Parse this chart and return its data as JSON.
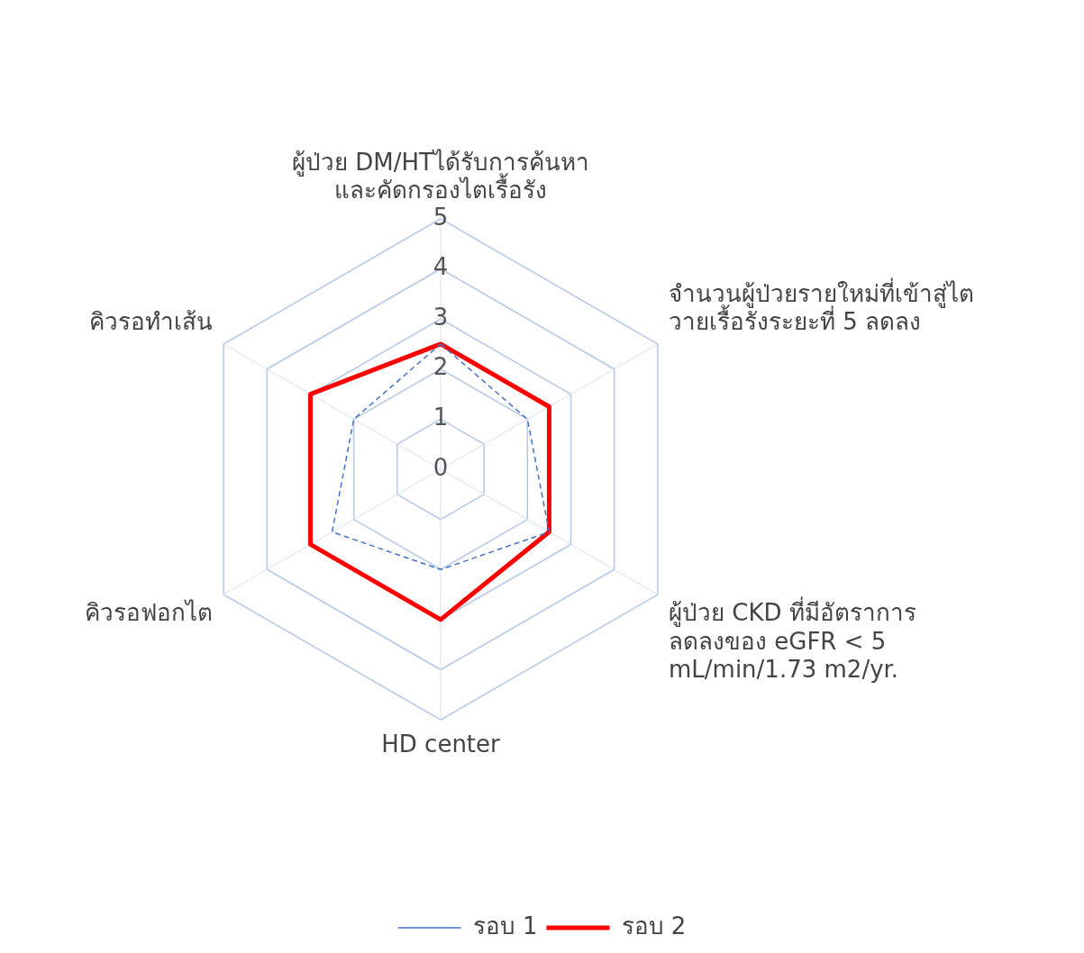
{
  "chart_data": {
    "type": "radar",
    "categories": [
      "ผู้ป่วย DM/HTได้รับการค้นหา\nและคัดกรองไตเรื้อรัง",
      "จำนวนผู้ป่วยรายใหม่ที่เข้าสู่ไต\nวายเรื้อรังระยะที่ 5 ลดลง",
      "ผู้ป่วย CKD ที่มีอัตราการ\nลดลงของ eGFR < 5\nmL/min/1.73 m2/yr.",
      "HD center",
      "คิวรอฟอกไต",
      "คิวรอทำเส้น"
    ],
    "series": [
      {
        "name": "รอบ 1",
        "color": "#4472c4",
        "values": [
          2.5,
          2,
          2.5,
          2,
          2.5,
          2
        ],
        "line_style": "dashed"
      },
      {
        "name": "รอบ 2",
        "color": "#ff0000",
        "values": [
          2.5,
          2.5,
          2.5,
          3,
          3,
          3
        ],
        "line_style": "solid"
      }
    ],
    "ylim": [
      0,
      5
    ],
    "yticks": [
      0,
      1,
      2,
      3,
      4,
      5
    ],
    "grid": true,
    "legend": "bottom",
    "marker": "none"
  }
}
